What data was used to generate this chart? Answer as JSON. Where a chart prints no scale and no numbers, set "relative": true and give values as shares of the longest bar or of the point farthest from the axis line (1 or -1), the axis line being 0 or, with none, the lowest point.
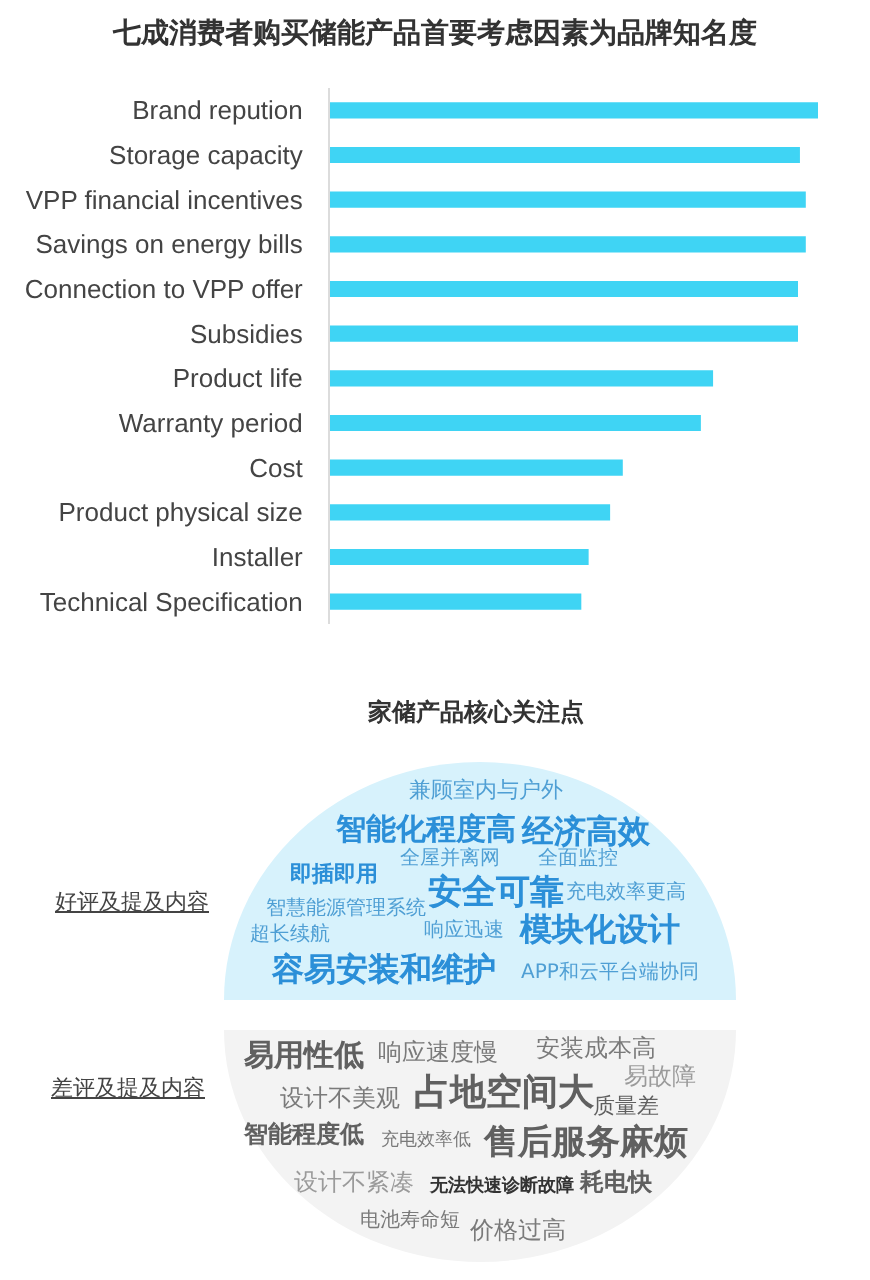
{
  "chart_data": [
    {
      "type": "bar",
      "orientation": "horizontal",
      "relative": true,
      "title": "七成消费者购买储能产品首要考虑因素为品牌知名度",
      "categories": [
        "Brand repution",
        "Storage capacity",
        "VPP financial incentives",
        "Savings on energy bills",
        "Connection to VPP offer",
        "Subsidies",
        "Product life",
        "Warranty period",
        "Cost",
        "Product physical size",
        "Installer",
        "Technical Specification"
      ],
      "values": [
        1,
        0.963,
        0.975,
        0.975,
        0.959,
        0.959,
        0.785,
        0.76,
        0.6,
        0.574,
        0.53,
        0.515
      ],
      "color": "#3fd4f4"
    },
    {
      "type": "other",
      "title": "家储产品核心关注点",
      "annotations": [
        "好评及提及内容",
        "差评及提及内容",
        "兼顾室内与户外",
        "智能化程度高",
        "经济高效",
        "全屋并离网",
        "全面监控",
        "即插即用",
        "安全可靠",
        "充电效率更高",
        "智慧能源管理系统",
        "超长续航",
        "响应迅速",
        "模块化设计",
        "容易安装和维护",
        "APP和云平台端协同",
        "易用性低",
        "响应速度慢",
        "安装成本高",
        "易故障",
        "设计不美观",
        "占地空间大",
        "质量差",
        "智能程度低",
        "充电效率低",
        "售后服务麻烦",
        "设计不紧凑",
        "无法快速诊断故障",
        "耗电快",
        "电池寿命短",
        "价格过高"
      ]
    }
  ]
}
